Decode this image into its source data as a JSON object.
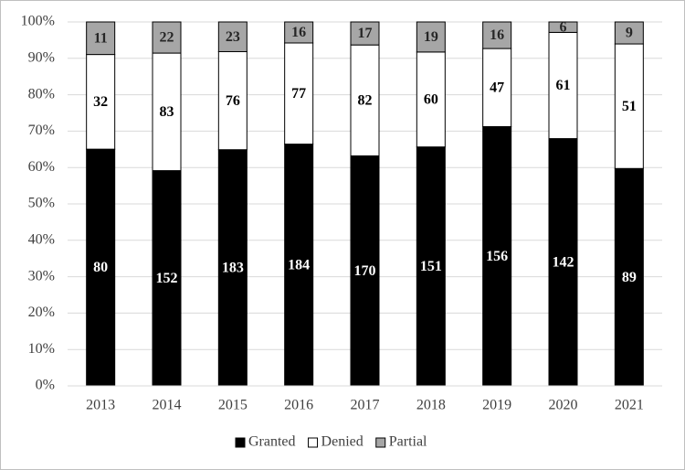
{
  "chart_data": {
    "type": "bar",
    "stacked": "percent",
    "categories": [
      "2013",
      "2014",
      "2015",
      "2016",
      "2017",
      "2018",
      "2019",
      "2020",
      "2021"
    ],
    "series": [
      {
        "name": "Granted",
        "color": "#000000",
        "values": [
          80,
          152,
          183,
          184,
          170,
          151,
          156,
          142,
          89
        ]
      },
      {
        "name": "Denied",
        "color": "#ffffff",
        "values": [
          32,
          83,
          76,
          77,
          82,
          60,
          47,
          61,
          51
        ]
      },
      {
        "name": "Partial",
        "color": "#a6a6a6",
        "values": [
          11,
          22,
          23,
          16,
          17,
          19,
          16,
          6,
          9
        ]
      }
    ],
    "ylim": [
      0,
      100
    ],
    "yticks": [
      {
        "value": 0,
        "label": "0%"
      },
      {
        "value": 10,
        "label": "10%"
      },
      {
        "value": 20,
        "label": "20%"
      },
      {
        "value": 30,
        "label": "30%"
      },
      {
        "value": 40,
        "label": "40%"
      },
      {
        "value": 50,
        "label": "50%"
      },
      {
        "value": 60,
        "label": "60%"
      },
      {
        "value": 70,
        "label": "70%"
      },
      {
        "value": 80,
        "label": "80%"
      },
      {
        "value": 90,
        "label": "90%"
      },
      {
        "value": 100,
        "label": "100%"
      }
    ],
    "grid": true,
    "legend": "bottom"
  }
}
